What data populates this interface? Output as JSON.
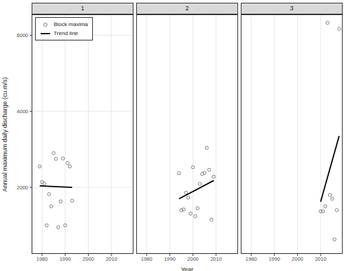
{
  "chart_data": [
    {
      "type": "scatter",
      "title": "1",
      "y_label": "Annual maximum daily discharge (cu.m/s)",
      "legend": "top-left",
      "grid": true,
      "xlim": [
        1975.5,
        2019.5
      ],
      "ylim": [
        250,
        6550
      ],
      "xticks": [
        1980,
        1990,
        2000,
        2010
      ],
      "yticks": [
        2000,
        4000,
        6000
      ],
      "series": [
        {
          "name": "Block maxima",
          "type": "scatter",
          "marker": "circle_open",
          "color": "#808080",
          "x": [
            1979,
            1980,
            1981,
            1982,
            1983,
            1984,
            1985,
            1986,
            1987,
            1988,
            1989,
            1990,
            1991,
            1992,
            1993
          ],
          "values": [
            2550,
            2140,
            2090,
            1000,
            1820,
            1500,
            2900,
            2750,
            950,
            1630,
            2760,
            1000,
            2640,
            2550,
            1650
          ]
        },
        {
          "name": "Trend line",
          "type": "line",
          "line_style": "solid",
          "color": "#000000",
          "x": [
            1979,
            1993
          ],
          "values": [
            2040,
            2000
          ]
        }
      ]
    },
    {
      "type": "scatter",
      "title": "2",
      "x_label": "Year",
      "grid": true,
      "tick_labels": "x",
      "xlim": [
        1975.5,
        2019.5
      ],
      "ylim": [
        250,
        6550
      ],
      "xticks": [
        1980,
        1990,
        2000,
        2010
      ],
      "yticks": [
        2000,
        4000,
        6000
      ],
      "series": [
        {
          "name": "Block maxima",
          "type": "scatter",
          "marker": "circle_open",
          "color": "#808080",
          "x": [
            1994,
            1995,
            1996,
            1997,
            1998,
            1999,
            2000,
            2001,
            2002,
            2003,
            2004,
            2005,
            2006,
            2007,
            2008,
            2009
          ],
          "values": [
            2370,
            1400,
            1420,
            1860,
            1730,
            1310,
            2530,
            1240,
            1450,
            2090,
            2350,
            2380,
            3040,
            2460,
            1150,
            2280
          ]
        },
        {
          "name": "Trend line",
          "type": "line",
          "line_style": "solid",
          "color": "#000000",
          "x": [
            1994,
            2009
          ],
          "values": [
            1700,
            2180
          ]
        }
      ]
    },
    {
      "type": "scatter",
      "title": "3",
      "grid": true,
      "tick_labels": "x",
      "xlim": [
        1975.5,
        2019.5
      ],
      "ylim": [
        250,
        6550
      ],
      "xticks": [
        1980,
        1990,
        2000,
        2010
      ],
      "yticks": [
        2000,
        4000,
        6000
      ],
      "series": [
        {
          "name": "Block maxima",
          "type": "scatter",
          "marker": "circle_open",
          "color": "#808080",
          "x": [
            2010,
            2011,
            2012,
            2013,
            2014,
            2015,
            2016,
            2017,
            2018
          ],
          "values": [
            1370,
            1370,
            1500,
            6330,
            1800,
            1700,
            630,
            1400,
            6170
          ]
        },
        {
          "name": "Trend line",
          "type": "line",
          "line_style": "solid",
          "color": "#000000",
          "x": [
            2010,
            2018
          ],
          "values": [
            1620,
            3350
          ]
        }
      ]
    }
  ]
}
